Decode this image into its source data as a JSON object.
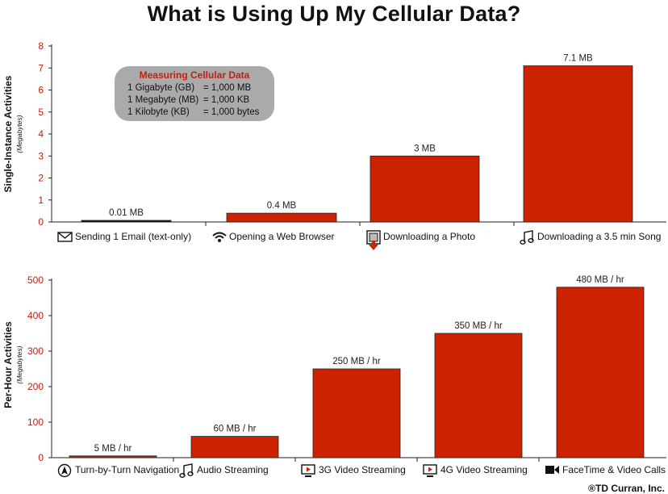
{
  "title": "What is Using Up My Cellular Data?",
  "copyright": "®TD Curran, Inc.",
  "colors": {
    "bar": "#cc2200",
    "tick_label": "#c2200e",
    "axis": "#222222",
    "box": "#aaaaaa"
  },
  "infobox": {
    "title": "Measuring Cellular Data",
    "rows": [
      {
        "unit": "1 Gigabyte (GB)",
        "value": "= 1,000 MB"
      },
      {
        "unit": "1 Megabyte (MB)",
        "value": "= 1,000 KB"
      },
      {
        "unit": "1 Kilobyte (KB)",
        "value": "= 1,000 bytes"
      }
    ]
  },
  "chart_data": [
    {
      "type": "bar",
      "ylabel": "Single-Instance Activities",
      "ylabel_sub": "(Megabytes)",
      "ylim": [
        0,
        8
      ],
      "yticks": [
        0,
        1,
        2,
        3,
        4,
        5,
        6,
        7,
        8
      ],
      "grid": false,
      "categories": [
        "Sending 1 Email (text-only)",
        "Opening a Web Browser",
        "Downloading a Photo",
        "Downloading a 3.5 min Song"
      ],
      "icons": [
        "envelope-icon",
        "wifi-icon",
        "photo-download-icon",
        "music-note-icon"
      ],
      "values": [
        0.01,
        0.4,
        3,
        7.1
      ],
      "data_labels": [
        "0.01 MB",
        "0.4 MB",
        "3 MB",
        "7.1 MB"
      ]
    },
    {
      "type": "bar",
      "ylabel": "Per-Hour Activities",
      "ylabel_sub": "(Megabytes)",
      "ylim": [
        0,
        500
      ],
      "yticks": [
        0,
        100,
        200,
        300,
        400,
        500
      ],
      "grid": false,
      "categories": [
        "Turn-by-Turn Navigation",
        "Audio Streaming",
        "3G Video Streaming",
        "4G Video Streaming",
        "FaceTime & Video Calls"
      ],
      "icons": [
        "navigation-arrow-icon",
        "music-note-icon",
        "video-screen-icon",
        "video-screen-icon",
        "video-camera-icon"
      ],
      "values": [
        5,
        60,
        250,
        350,
        480
      ],
      "data_labels": [
        "5 MB / hr",
        "60 MB / hr",
        "250 MB / hr",
        "350 MB / hr",
        "480 MB / hr"
      ]
    }
  ]
}
